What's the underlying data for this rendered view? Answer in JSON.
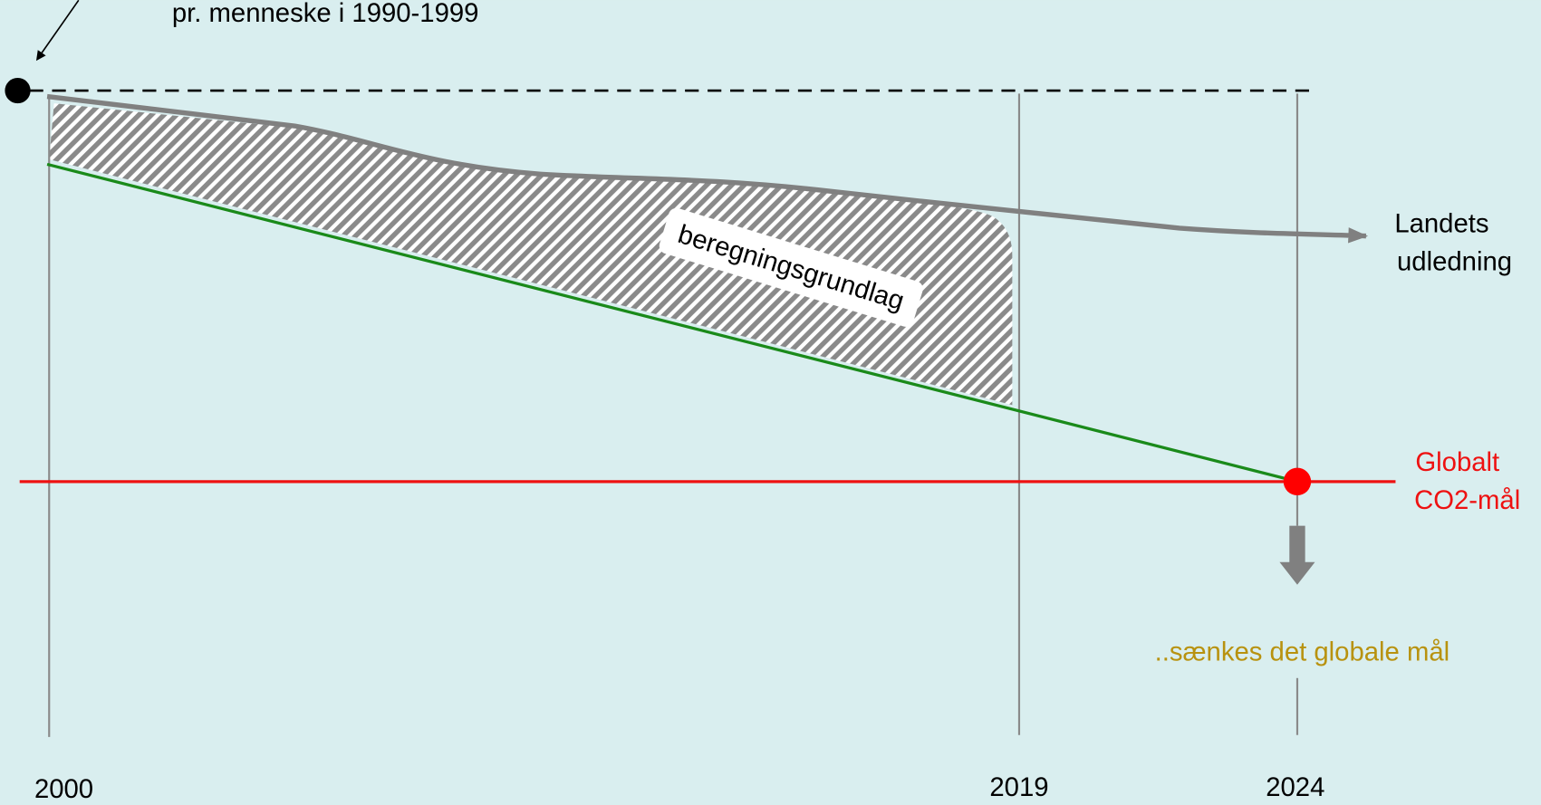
{
  "annotations": {
    "top_note": "pr. menneske i 1990-1999",
    "hatch_label": "beregningsgrundlag",
    "country_line": [
      "Landets",
      "udledning"
    ],
    "global_line": [
      "Globalt",
      "CO2-mål"
    ],
    "lowered": "..sænkes det globale mål"
  },
  "years": [
    "2000",
    "2019",
    "2024"
  ]
}
